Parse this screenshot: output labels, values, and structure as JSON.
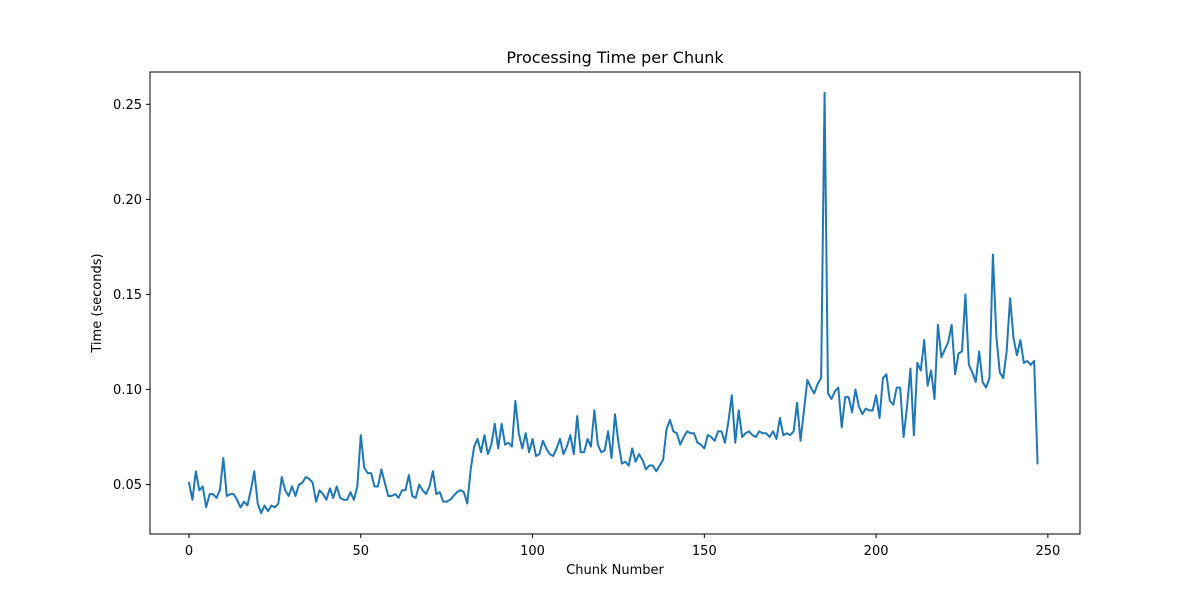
{
  "chart_data": {
    "type": "line",
    "title": "Processing Time per Chunk",
    "xlabel": "Chunk Number",
    "ylabel": "Time (seconds)",
    "xlim": [
      -11.35,
      259.35
    ],
    "ylim": [
      0.024,
      0.267
    ],
    "xticks": [
      0,
      50,
      100,
      150,
      200,
      250
    ],
    "xtick_labels": [
      "0",
      "50",
      "100",
      "150",
      "200",
      "250"
    ],
    "yticks": [
      0.05,
      0.1,
      0.15,
      0.2,
      0.25
    ],
    "ytick_labels": [
      "0.05",
      "0.10",
      "0.15",
      "0.20",
      "0.25"
    ],
    "grid": false,
    "series": [
      {
        "color": "#1f77b4",
        "x": [
          0,
          1,
          2,
          3,
          4,
          5,
          6,
          7,
          8,
          9,
          10,
          11,
          12,
          13,
          14,
          15,
          16,
          17,
          18,
          19,
          20,
          21,
          22,
          23,
          24,
          25,
          26,
          27,
          28,
          29,
          30,
          31,
          32,
          33,
          34,
          35,
          36,
          37,
          38,
          39,
          40,
          41,
          42,
          43,
          44,
          45,
          46,
          47,
          48,
          49,
          50,
          51,
          52,
          53,
          54,
          55,
          56,
          57,
          58,
          59,
          60,
          61,
          62,
          63,
          64,
          65,
          66,
          67,
          68,
          69,
          70,
          71,
          72,
          73,
          74,
          75,
          76,
          77,
          78,
          79,
          80,
          81,
          82,
          83,
          84,
          85,
          86,
          87,
          88,
          89,
          90,
          91,
          92,
          93,
          94,
          95,
          96,
          97,
          98,
          99,
          100,
          101,
          102,
          103,
          104,
          105,
          106,
          107,
          108,
          109,
          110,
          111,
          112,
          113,
          114,
          115,
          116,
          117,
          118,
          119,
          120,
          121,
          122,
          123,
          124,
          125,
          126,
          127,
          128,
          129,
          130,
          131,
          132,
          133,
          134,
          135,
          136,
          137,
          138,
          139,
          140,
          141,
          142,
          143,
          144,
          145,
          146,
          147,
          148,
          149,
          150,
          151,
          152,
          153,
          154,
          155,
          156,
          157,
          158,
          159,
          160,
          161,
          162,
          163,
          164,
          165,
          166,
          167,
          168,
          169,
          170,
          171,
          172,
          173,
          174,
          175,
          176,
          177,
          178,
          179,
          180,
          181,
          182,
          183,
          184,
          185,
          186,
          187,
          188,
          189,
          190,
          191,
          192,
          193,
          194,
          195,
          196,
          197,
          198,
          199,
          200,
          201,
          202,
          203,
          204,
          205,
          206,
          207,
          208,
          209,
          210,
          211,
          212,
          213,
          214,
          215,
          216,
          217,
          218,
          219,
          220,
          221,
          222,
          223,
          224,
          225,
          226,
          227,
          228,
          229,
          230,
          231,
          232,
          233,
          234,
          235,
          236,
          237,
          238,
          239,
          240,
          241,
          242,
          243,
          244,
          245,
          246,
          247
        ],
        "values": [
          0.051,
          0.042,
          0.057,
          0.047,
          0.049,
          0.038,
          0.045,
          0.045,
          0.043,
          0.047,
          0.064,
          0.044,
          0.045,
          0.045,
          0.042,
          0.038,
          0.041,
          0.039,
          0.047,
          0.057,
          0.04,
          0.035,
          0.039,
          0.036,
          0.039,
          0.038,
          0.04,
          0.054,
          0.047,
          0.044,
          0.049,
          0.044,
          0.05,
          0.051,
          0.054,
          0.053,
          0.051,
          0.041,
          0.047,
          0.045,
          0.042,
          0.048,
          0.043,
          0.049,
          0.043,
          0.042,
          0.042,
          0.046,
          0.042,
          0.049,
          0.076,
          0.059,
          0.056,
          0.056,
          0.049,
          0.049,
          0.058,
          0.051,
          0.044,
          0.044,
          0.045,
          0.043,
          0.047,
          0.047,
          0.055,
          0.044,
          0.043,
          0.05,
          0.047,
          0.045,
          0.049,
          0.057,
          0.045,
          0.046,
          0.041,
          0.041,
          0.042,
          0.044,
          0.046,
          0.047,
          0.046,
          0.04,
          0.058,
          0.07,
          0.074,
          0.067,
          0.076,
          0.066,
          0.071,
          0.082,
          0.069,
          0.082,
          0.071,
          0.072,
          0.07,
          0.094,
          0.077,
          0.069,
          0.077,
          0.067,
          0.074,
          0.065,
          0.066,
          0.073,
          0.069,
          0.066,
          0.065,
          0.069,
          0.074,
          0.066,
          0.07,
          0.076,
          0.066,
          0.086,
          0.067,
          0.067,
          0.074,
          0.07,
          0.089,
          0.071,
          0.067,
          0.068,
          0.078,
          0.064,
          0.087,
          0.072,
          0.061,
          0.062,
          0.06,
          0.069,
          0.062,
          0.066,
          0.063,
          0.058,
          0.06,
          0.06,
          0.057,
          0.06,
          0.063,
          0.079,
          0.084,
          0.078,
          0.077,
          0.071,
          0.075,
          0.078,
          0.077,
          0.077,
          0.072,
          0.071,
          0.069,
          0.076,
          0.075,
          0.073,
          0.078,
          0.078,
          0.072,
          0.083,
          0.097,
          0.072,
          0.089,
          0.075,
          0.077,
          0.078,
          0.076,
          0.075,
          0.078,
          0.077,
          0.077,
          0.075,
          0.078,
          0.074,
          0.085,
          0.076,
          0.077,
          0.076,
          0.078,
          0.093,
          0.073,
          0.089,
          0.105,
          0.101,
          0.098,
          0.103,
          0.106,
          0.256,
          0.098,
          0.095,
          0.099,
          0.101,
          0.08,
          0.096,
          0.096,
          0.088,
          0.1,
          0.091,
          0.087,
          0.09,
          0.089,
          0.089,
          0.097,
          0.085,
          0.106,
          0.108,
          0.094,
          0.092,
          0.101,
          0.101,
          0.075,
          0.091,
          0.111,
          0.076,
          0.114,
          0.11,
          0.126,
          0.102,
          0.11,
          0.095,
          0.134,
          0.117,
          0.121,
          0.125,
          0.134,
          0.108,
          0.119,
          0.12,
          0.15,
          0.113,
          0.109,
          0.104,
          0.12,
          0.104,
          0.101,
          0.106,
          0.171,
          0.128,
          0.109,
          0.106,
          0.12,
          0.148,
          0.127,
          0.118,
          0.126,
          0.114,
          0.115,
          0.113,
          0.115,
          0.061
        ]
      }
    ]
  }
}
